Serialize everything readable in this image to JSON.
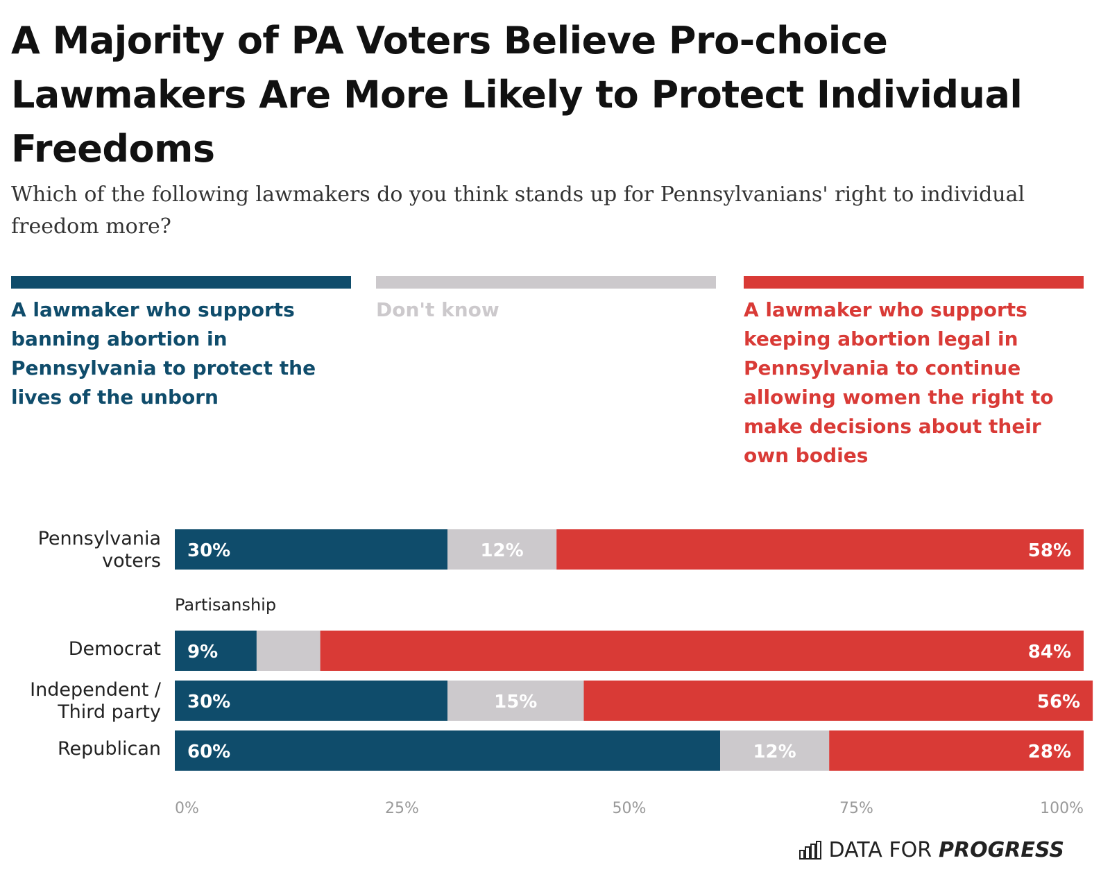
{
  "title": "A Majority of PA Voters Believe Pro-choice Lawmakers Are More Likely to Protect Individual Freedoms",
  "subtitle": "Which of the following lawmakers do you think stands up for Pennsylvanians' right to individual freedom more?",
  "colors": {
    "ban": "#0f4c6b",
    "dont_know": "#ccc9cc",
    "legal": "#d93a36"
  },
  "brand": {
    "prefix": "DATA FOR",
    "emphasis": "PROGRESS",
    "icon": "bar-chart-icon"
  },
  "chart_data": {
    "type": "bar",
    "orientation": "horizontal",
    "stacked": true,
    "categories": [
      "Pennsylvania voters",
      "Democrat",
      "Independent / Third party",
      "Republican"
    ],
    "group_label": "Partisanship",
    "series": [
      {
        "name": "A lawmaker who supports banning abortion in Pennsylvania to protect the lives of the unborn",
        "values": [
          30,
          9,
          30,
          60
        ],
        "labels": [
          "30%",
          "9%",
          "30%",
          "60%"
        ]
      },
      {
        "name": "Don't know",
        "values": [
          12,
          7,
          15,
          12
        ],
        "labels": [
          "12%",
          "",
          "15%",
          "12%"
        ]
      },
      {
        "name": "A lawmaker who supports keeping abortion legal in Pennsylvania to continue allowing women the right to make decisions about their own bodies",
        "values": [
          58,
          84,
          56,
          28
        ],
        "labels": [
          "58%",
          "84%",
          "56%",
          "28%"
        ]
      }
    ],
    "xlim": [
      0,
      100
    ],
    "xticks": [
      "0%",
      "25%",
      "50%",
      "75%",
      "100%"
    ],
    "legend_position": "top",
    "grid": false
  }
}
